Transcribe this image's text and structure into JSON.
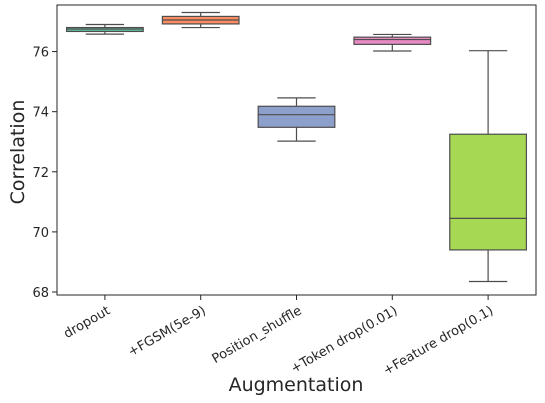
{
  "chart_data": {
    "type": "box",
    "title": "",
    "xlabel": "Augmentation",
    "ylabel": "Correlation",
    "ylim": [
      67.9,
      77.55
    ],
    "y_ticks": [
      68,
      70,
      72,
      74,
      76
    ],
    "grid": false,
    "categories": [
      "dropout",
      "+FGSM(5e-9)",
      "Position_shuffle",
      "+Token drop(0.01)",
      "+Feature drop(0.1)"
    ],
    "boxes": [
      {
        "category": "dropout",
        "whisker_low": 76.58,
        "q1": 76.67,
        "median": 76.75,
        "q3": 76.8,
        "whisker_high": 76.9,
        "color": "#66c2a5"
      },
      {
        "category": "+FGSM(5e-9)",
        "whisker_low": 76.8,
        "q1": 76.92,
        "median": 77.05,
        "q3": 77.17,
        "whisker_high": 77.3,
        "color": "#fc8d62"
      },
      {
        "category": "Position_shuffle",
        "whisker_low": 73.02,
        "q1": 73.48,
        "median": 73.9,
        "q3": 74.18,
        "whisker_high": 74.46,
        "color": "#8da0cb"
      },
      {
        "category": "+Token drop(0.01)",
        "whisker_low": 76.02,
        "q1": 76.24,
        "median": 76.4,
        "q3": 76.48,
        "whisker_high": 76.57,
        "color": "#e78ac3"
      },
      {
        "category": "+Feature drop(0.1)",
        "whisker_low": 68.35,
        "q1": 69.4,
        "median": 70.45,
        "q3": 73.25,
        "whisker_high": 76.03,
        "color": "#a6d854"
      }
    ]
  }
}
